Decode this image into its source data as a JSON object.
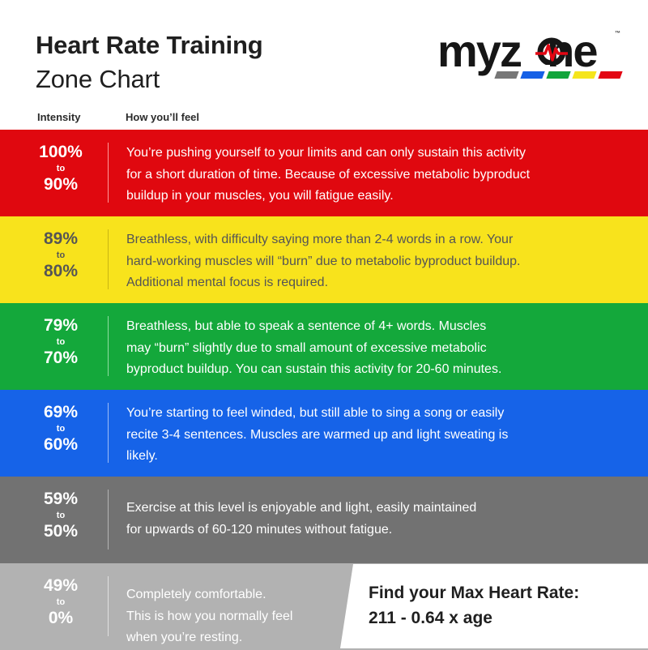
{
  "header": {
    "title": "Heart Rate Training",
    "subtitle": "Zone Chart"
  },
  "logo": {
    "letters": [
      "m",
      "y",
      "z",
      "o",
      "n",
      "e"
    ],
    "trademark": "™",
    "pulse_icon": "heartbeat-pulse-icon",
    "bar_colors": [
      "#777777",
      "#1560e6",
      "#12a53b",
      "#f5e51c",
      "#e30613"
    ]
  },
  "columns": {
    "intensity": "Intensity",
    "feel": "How you’ll feel"
  },
  "zones": [
    {
      "from": "100%",
      "to_word": "to",
      "to": "90%",
      "description": "You’re pushing yourself to your limits and can only sustain this activity\nfor a short duration of time. Because of excessive metabolic byproduct\nbuildup in your muscles, you will fatigue easily.",
      "bg": "#e0080f",
      "text": "#ffffff",
      "divider": "#ff9a9a"
    },
    {
      "from": "89%",
      "to_word": "to",
      "to": "80%",
      "description": "Breathless, with difficulty saying more than 2-4 words in a row. Your\nhard-working muscles will “burn” due to metabolic byproduct buildup.\nAdditional mental focus is required.",
      "bg": "#f8e31c",
      "text": "#555555",
      "divider": "#c9b612"
    },
    {
      "from": "79%",
      "to_word": "to",
      "to": "70%",
      "description": "Breathless, but able to speak a sentence of 4+ words. Muscles\nmay “burn” slightly due to small amount of excessive metabolic\nbyproduct buildup. You can sustain this activity for 20-60 minutes.",
      "bg": "#14a83b",
      "text": "#ffffff",
      "divider": "#8fdca2"
    },
    {
      "from": "69%",
      "to_word": "to",
      "to": "60%",
      "description": "You’re starting to feel winded, but still able to sing a song or easily\nrecite 3-4 sentences. Muscles are warmed up and light sweating is\nlikely.",
      "bg": "#1663e8",
      "text": "#ffffff",
      "divider": "#9cbcf5"
    },
    {
      "from": "59%",
      "to_word": "to",
      "to": "50%",
      "description": "Exercise at this level is enjoyable and light, easily maintained\nfor upwards of 60-120 minutes without fatigue.",
      "bg": "#727272",
      "text": "#ffffff",
      "divider": "#b3b3b3"
    },
    {
      "from": "49%",
      "to_word": "to",
      "to": "0%",
      "description": "Completely comfortable.\nThis is how you normally feel\nwhen you’re resting.",
      "bg": "#b2b2b2",
      "text": "#ffffff",
      "divider": "#e0e0e0"
    }
  ],
  "max_hr": {
    "title": "Find your Max Heart Rate:",
    "formula": "211 - 0.64 x age"
  }
}
